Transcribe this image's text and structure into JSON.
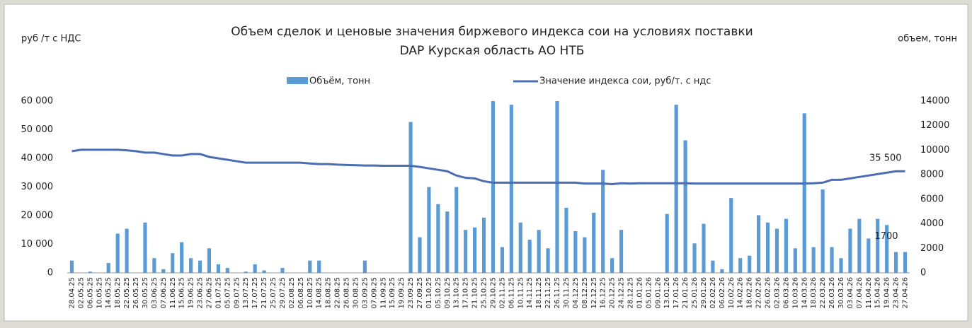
{
  "chart_data": {
    "type": "bar",
    "title": "Объем сделок и ценовые значения биржевого индекса сои на условиях поставки",
    "subtitle": "DAP Курская область АО НТБ",
    "y_label": "руб /т с НДС",
    "y2_label": "объем, тонн",
    "categories": [
      "28.04.25",
      "02.05.25",
      "06.05.25",
      "10.05.25",
      "14.05.25",
      "18.05.25",
      "22.05.25",
      "26.05.25",
      "30.05.25",
      "03.06.25",
      "07.06.25",
      "11.06.25",
      "15.06.25",
      "19.06.25",
      "23.06.25",
      "27.06.25",
      "01.07.25",
      "05.07.25",
      "09.07.25",
      "13.07.25",
      "17.07.25",
      "21.07.25",
      "25.07.25",
      "29.07.25",
      "02.08.25",
      "06.08.25",
      "10.08.25",
      "14.08.25",
      "18.08.25",
      "22.08.25",
      "26.08.25",
      "30.08.25",
      "03.09.25",
      "07.09.25",
      "11.09.25",
      "15.09.25",
      "19.09.25",
      "23.09.25",
      "27.09.25",
      "01.10.25",
      "05.10.25",
      "09.10.25",
      "13.10.25",
      "17.10.25",
      "21.10.25",
      "25.10.25",
      "29.10.25",
      "02.11.25",
      "06.11.25",
      "10.11.25",
      "14.11.25",
      "18.11.25",
      "22.11.25",
      "26.11.25",
      "30.11.25",
      "04.12.25",
      "08.12.25",
      "12.12.25",
      "16.12.25",
      "20.12.25",
      "24.12.25",
      "28.12.25",
      "01.01.26",
      "05.01.26",
      "09.01.26",
      "13.01.26",
      "17.01.26",
      "21.01.26",
      "25.01.26",
      "29.01.26",
      "02.02.26",
      "06.02.26",
      "10.02.26",
      "14.02.26",
      "18.02.26",
      "22.02.26",
      "26.02.26",
      "02.03.26",
      "06.03.26",
      "10.03.26",
      "14.03.26",
      "18.03.26",
      "22.03.26",
      "26.03.26",
      "30.03.26",
      "03.04.26",
      "07.04.26",
      "11.04.26",
      "15.04.26",
      "19.04.26",
      "23.04.26",
      "27.04.26"
    ],
    "series": [
      {
        "name": "Объём, тонн",
        "type": "bar",
        "axis": "y2",
        "color": "#5b9bd5",
        "values": [
          1000,
          0,
          100,
          0,
          800,
          3200,
          3600,
          0,
          4100,
          1200,
          300,
          1600,
          2500,
          1200,
          1000,
          2000,
          700,
          400,
          0,
          100,
          700,
          200,
          0,
          400,
          0,
          0,
          1000,
          1000,
          0,
          0,
          0,
          0,
          1000,
          0,
          0,
          0,
          0,
          12300,
          2900,
          7000,
          5600,
          5000,
          7000,
          3500,
          3700,
          4500,
          14000,
          2100,
          13700,
          4100,
          2700,
          3500,
          2000,
          14000,
          5300,
          3400,
          2900,
          4900,
          8400,
          1200,
          3500,
          0,
          0,
          0,
          0,
          4800,
          13700,
          10800,
          2400,
          4000,
          1000,
          300,
          6100,
          1200,
          1400,
          4700,
          4100,
          3600,
          4400,
          2000,
          13000,
          2100,
          6800,
          2100,
          1200,
          3600,
          4400,
          2800,
          4400,
          3900,
          1700,
          1700
        ]
      },
      {
        "name": "Значение индекса сои, руб/т. с ндс",
        "type": "line",
        "axis": "y",
        "color": "#4a6db3",
        "values": [
          42500,
          43000,
          43000,
          43000,
          43000,
          43000,
          42800,
          42500,
          42000,
          42000,
          41500,
          41000,
          41000,
          41500,
          41500,
          40500,
          40000,
          39500,
          39000,
          38500,
          38500,
          38500,
          38500,
          38500,
          38500,
          38500,
          38200,
          38000,
          38000,
          37800,
          37700,
          37600,
          37500,
          37500,
          37400,
          37400,
          37400,
          37400,
          37000,
          36500,
          36000,
          35500,
          34000,
          33200,
          33000,
          32000,
          31500,
          31500,
          31500,
          31500,
          31500,
          31500,
          31500,
          31500,
          31500,
          31500,
          31200,
          31200,
          31200,
          31000,
          31300,
          31200,
          31300,
          31300,
          31300,
          31300,
          31300,
          31300,
          31200,
          31200,
          31200,
          31200,
          31200,
          31200,
          31200,
          31200,
          31200,
          31200,
          31200,
          31200,
          31200,
          31300,
          31500,
          32500,
          32500,
          33000,
          33500,
          34000,
          34500,
          35000,
          35500,
          35500
        ]
      }
    ],
    "ylim": [
      0,
      60000
    ],
    "yticks": [
      0,
      {
        "value": 10000,
        "label": "10 000"
      },
      {
        "value": 20000,
        "label": "20 000"
      },
      {
        "value": 30000,
        "label": "30 000"
      },
      {
        "value": 40000,
        "label": "40 000"
      },
      {
        "value": 50000,
        "label": "50 000"
      },
      {
        "value": 60000,
        "label": "60 000"
      }
    ],
    "y2lim": [
      0,
      14000
    ],
    "y2ticks": [
      0,
      2000,
      4000,
      6000,
      8000,
      10000,
      12000,
      14000
    ],
    "annotations": [
      "35 500",
      "1700"
    ],
    "legend": "top"
  }
}
